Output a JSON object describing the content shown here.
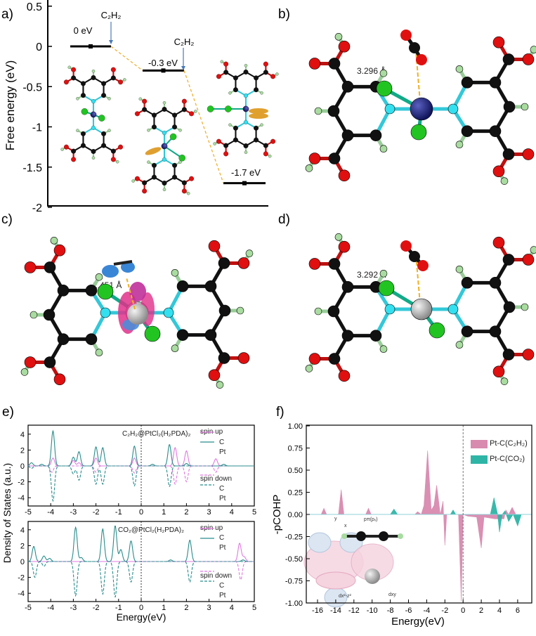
{
  "panel_labels": {
    "a": "a)",
    "b": "b)",
    "c": "c)",
    "d": "d)",
    "e": "e)",
    "f": "f)"
  },
  "distances": {
    "b": "3.296 Å",
    "c": "2.451 Å",
    "d": "3.292 Å"
  },
  "atom_colors": {
    "carbon": "#111111",
    "oxygen": "#e01010",
    "hydrogen": "#a9dca0",
    "nitrogen": "#33e0f0",
    "chlorine": "#22c422",
    "pt_navy": "#1a1f7a",
    "pt_grey": "#b0b0b0",
    "adsorbate_orange": "#e0a030"
  },
  "chart_data": [
    {
      "type": "line",
      "panel": "a",
      "ylabel": "Free energy (eV)",
      "ylim": [
        -2,
        0.5
      ],
      "yticks": [
        "0.5",
        "0",
        "-0.5",
        "-1",
        "-1.5",
        "-2"
      ],
      "levels": [
        {
          "value": 0,
          "label": "0 eV"
        },
        {
          "value": -0.3,
          "label": "-0.3 eV"
        },
        {
          "value": -1.7,
          "label": "-1.7 eV"
        }
      ],
      "arrows": [
        "C₂H₂",
        "C₂H₂"
      ],
      "line_color": "#000000",
      "connector_color": "#f0b030"
    },
    {
      "type": "line",
      "panel": "e-top",
      "title": "C₂H₂@PtCl₂(H₂PDA)₂",
      "ylabel": "Density of States (a.u.)",
      "xlim": [
        -5,
        5
      ],
      "ylim": [
        -5,
        5
      ],
      "xticks": [
        "-5",
        "-4",
        "-3",
        "-2",
        "-1",
        "0",
        "1",
        "2",
        "3",
        "4",
        "5"
      ],
      "yticks": [
        "4",
        "2",
        "0",
        "-2",
        "-4"
      ],
      "legend": {
        "spin_up": "spin up",
        "spin_down": "spin down",
        "c": "C",
        "pt": "Pt"
      },
      "series": [
        {
          "name": "C",
          "spin": "up",
          "peaks": [
            [
              -3.9,
              1.0
            ],
            [
              -3.0,
              0.7
            ],
            [
              -2.75,
              0.4
            ],
            [
              -2.0,
              1.0
            ],
            [
              -0.3,
              1.0
            ],
            [
              1.5,
              2.3
            ],
            [
              2.0,
              1.9
            ],
            [
              3.3,
              0.9
            ]
          ]
        },
        {
          "name": "Pt",
          "spin": "up",
          "peaks": [
            [
              -4.85,
              0.4
            ],
            [
              -4.4,
              0.2
            ],
            [
              -3.9,
              4.4
            ],
            [
              -3.0,
              1.1
            ],
            [
              -2.75,
              1.8
            ],
            [
              -2.0,
              2.4
            ],
            [
              -1.7,
              2.3
            ],
            [
              -0.3,
              2.5
            ],
            [
              0.5,
              0.2
            ],
            [
              1.25,
              2.7
            ],
            [
              2.0,
              0.3
            ],
            [
              3.65,
              0.2
            ]
          ]
        },
        {
          "name": "C",
          "spin": "down",
          "peaks": [
            [
              -3.95,
              -0.8
            ],
            [
              -2.0,
              -0.8
            ],
            [
              -0.3,
              -0.9
            ],
            [
              1.5,
              -2.3
            ],
            [
              2.0,
              -2.0
            ],
            [
              3.3,
              -0.8
            ]
          ]
        },
        {
          "name": "Pt",
          "spin": "down",
          "peaks": [
            [
              -4.85,
              -0.3
            ],
            [
              -3.9,
              -4.4
            ],
            [
              -3.0,
              -1.0
            ],
            [
              -2.75,
              -1.8
            ],
            [
              -2.0,
              -2.3
            ],
            [
              -1.7,
              -2.3
            ],
            [
              -0.3,
              -2.5
            ],
            [
              1.25,
              -2.6
            ]
          ]
        }
      ]
    },
    {
      "type": "line",
      "panel": "e-bottom",
      "title": "CO₂@PtCl₂(H₂PDA)₂",
      "xlabel": "Energy(eV)",
      "xlim": [
        -5,
        5
      ],
      "ylim": [
        -5,
        5
      ],
      "xticks": [
        "-5",
        "-4",
        "-3",
        "-2",
        "-1",
        "0",
        "1",
        "2",
        "3",
        "4",
        "5"
      ],
      "yticks": [
        "4",
        "2",
        "0",
        "-2",
        "-4"
      ],
      "legend": {
        "spin_up": "spin up",
        "spin_down": "spin down",
        "c": "C",
        "pt": "Pt"
      },
      "series": [
        {
          "name": "C",
          "spin": "up",
          "peaks": [
            [
              4.35,
              2.3
            ],
            [
              4.55,
              0.6
            ]
          ]
        },
        {
          "name": "Pt",
          "spin": "up",
          "peaks": [
            [
              -4.75,
              1.9
            ],
            [
              -4.3,
              0.7
            ],
            [
              -4.05,
              0.4
            ],
            [
              -2.9,
              4.3
            ],
            [
              -2.65,
              0.5
            ],
            [
              -1.7,
              4.1
            ],
            [
              -1.15,
              4.5
            ],
            [
              -0.9,
              1.5
            ],
            [
              -0.45,
              2.6
            ],
            [
              1.3,
              0.2
            ],
            [
              2.15,
              2.7
            ],
            [
              4.5,
              0.2
            ]
          ]
        },
        {
          "name": "C",
          "spin": "down",
          "peaks": [
            [
              4.4,
              -2.3
            ]
          ]
        },
        {
          "name": "Pt",
          "spin": "down",
          "peaks": [
            [
              -4.7,
              -2.0
            ],
            [
              -4.3,
              -0.6
            ],
            [
              -2.9,
              -4.3
            ],
            [
              -1.7,
              -4.1
            ],
            [
              -1.15,
              -4.5
            ],
            [
              -0.45,
              -2.6
            ],
            [
              2.15,
              -2.6
            ]
          ]
        }
      ],
      "colors": {
        "C": "#e07be0",
        "Pt": "#2a8c8c"
      }
    },
    {
      "type": "area",
      "panel": "f",
      "xlabel": "Energy(eV)",
      "ylabel": "-pCOHP",
      "xlim": [
        -17.2,
        7.5
      ],
      "ylim": [
        -1,
        1
      ],
      "xticks": [
        "-16",
        "-14",
        "-12",
        "-10",
        "-8",
        "-6",
        "-4",
        "-2",
        "0",
        "2",
        "4",
        "6"
      ],
      "yticks": [
        "1.00",
        "0.75",
        "0.50",
        "0.25",
        "0.00",
        "-0.25",
        "-0.50",
        "-0.75",
        "-1.00"
      ],
      "legend_position": "top-right",
      "inset_labels": {
        "y": "y",
        "x": "x",
        "p": "pπ(pₓ)",
        "dx2z2": "dx²-z²",
        "dxy": "dxy"
      },
      "series": [
        {
          "name": "Pt-C(C₂H₂)",
          "color": "#d98aaf",
          "points": [
            [
              -17,
              0
            ],
            [
              -15.6,
              0
            ],
            [
              -15.3,
              0.07
            ],
            [
              -15,
              0
            ],
            [
              -13.7,
              0
            ],
            [
              -13.4,
              0.28
            ],
            [
              -13.1,
              0
            ],
            [
              -10.7,
              0
            ],
            [
              -10.4,
              0.07
            ],
            [
              -10.1,
              0
            ],
            [
              -5.3,
              0
            ],
            [
              -5.0,
              0.03
            ],
            [
              -4.6,
              0
            ],
            [
              -4.3,
              0.1
            ],
            [
              -3.9,
              0.72
            ],
            [
              -3.5,
              0.05
            ],
            [
              -3.2,
              0.1
            ],
            [
              -2.9,
              0.33
            ],
            [
              -2.5,
              0
            ],
            [
              -2.2,
              0.15
            ],
            [
              -2.0,
              -0.35
            ],
            [
              -1.8,
              0
            ],
            [
              -0.5,
              0
            ],
            [
              -0.2,
              -0.98
            ],
            [
              0,
              0
            ],
            [
              0.5,
              -0.02
            ],
            [
              1.5,
              -0.03
            ],
            [
              2.0,
              -0.38
            ],
            [
              2.3,
              -0.03
            ],
            [
              3.5,
              -0.05
            ],
            [
              4.5,
              -0.05
            ],
            [
              4.7,
              0.05
            ],
            [
              5.0,
              0
            ],
            [
              5.4,
              0.08
            ],
            [
              5.8,
              0
            ],
            [
              7,
              0
            ]
          ]
        },
        {
          "name": "Pt-C(CO₂)",
          "color": "#2fb5a6",
          "points": [
            [
              -8.0,
              0
            ],
            [
              -7.6,
              0.06
            ],
            [
              -7.2,
              0
            ],
            [
              -1.4,
              0
            ],
            [
              -1.1,
              0.05
            ],
            [
              -0.8,
              0
            ],
            [
              3.0,
              0
            ],
            [
              3.4,
              0.19
            ],
            [
              3.8,
              0
            ],
            [
              4.0,
              -0.2
            ],
            [
              4.3,
              0
            ],
            [
              4.6,
              0.04
            ],
            [
              5.0,
              -0.08
            ],
            [
              5.5,
              0
            ],
            [
              6.0,
              -0.13
            ],
            [
              6.4,
              0
            ]
          ]
        }
      ]
    }
  ]
}
